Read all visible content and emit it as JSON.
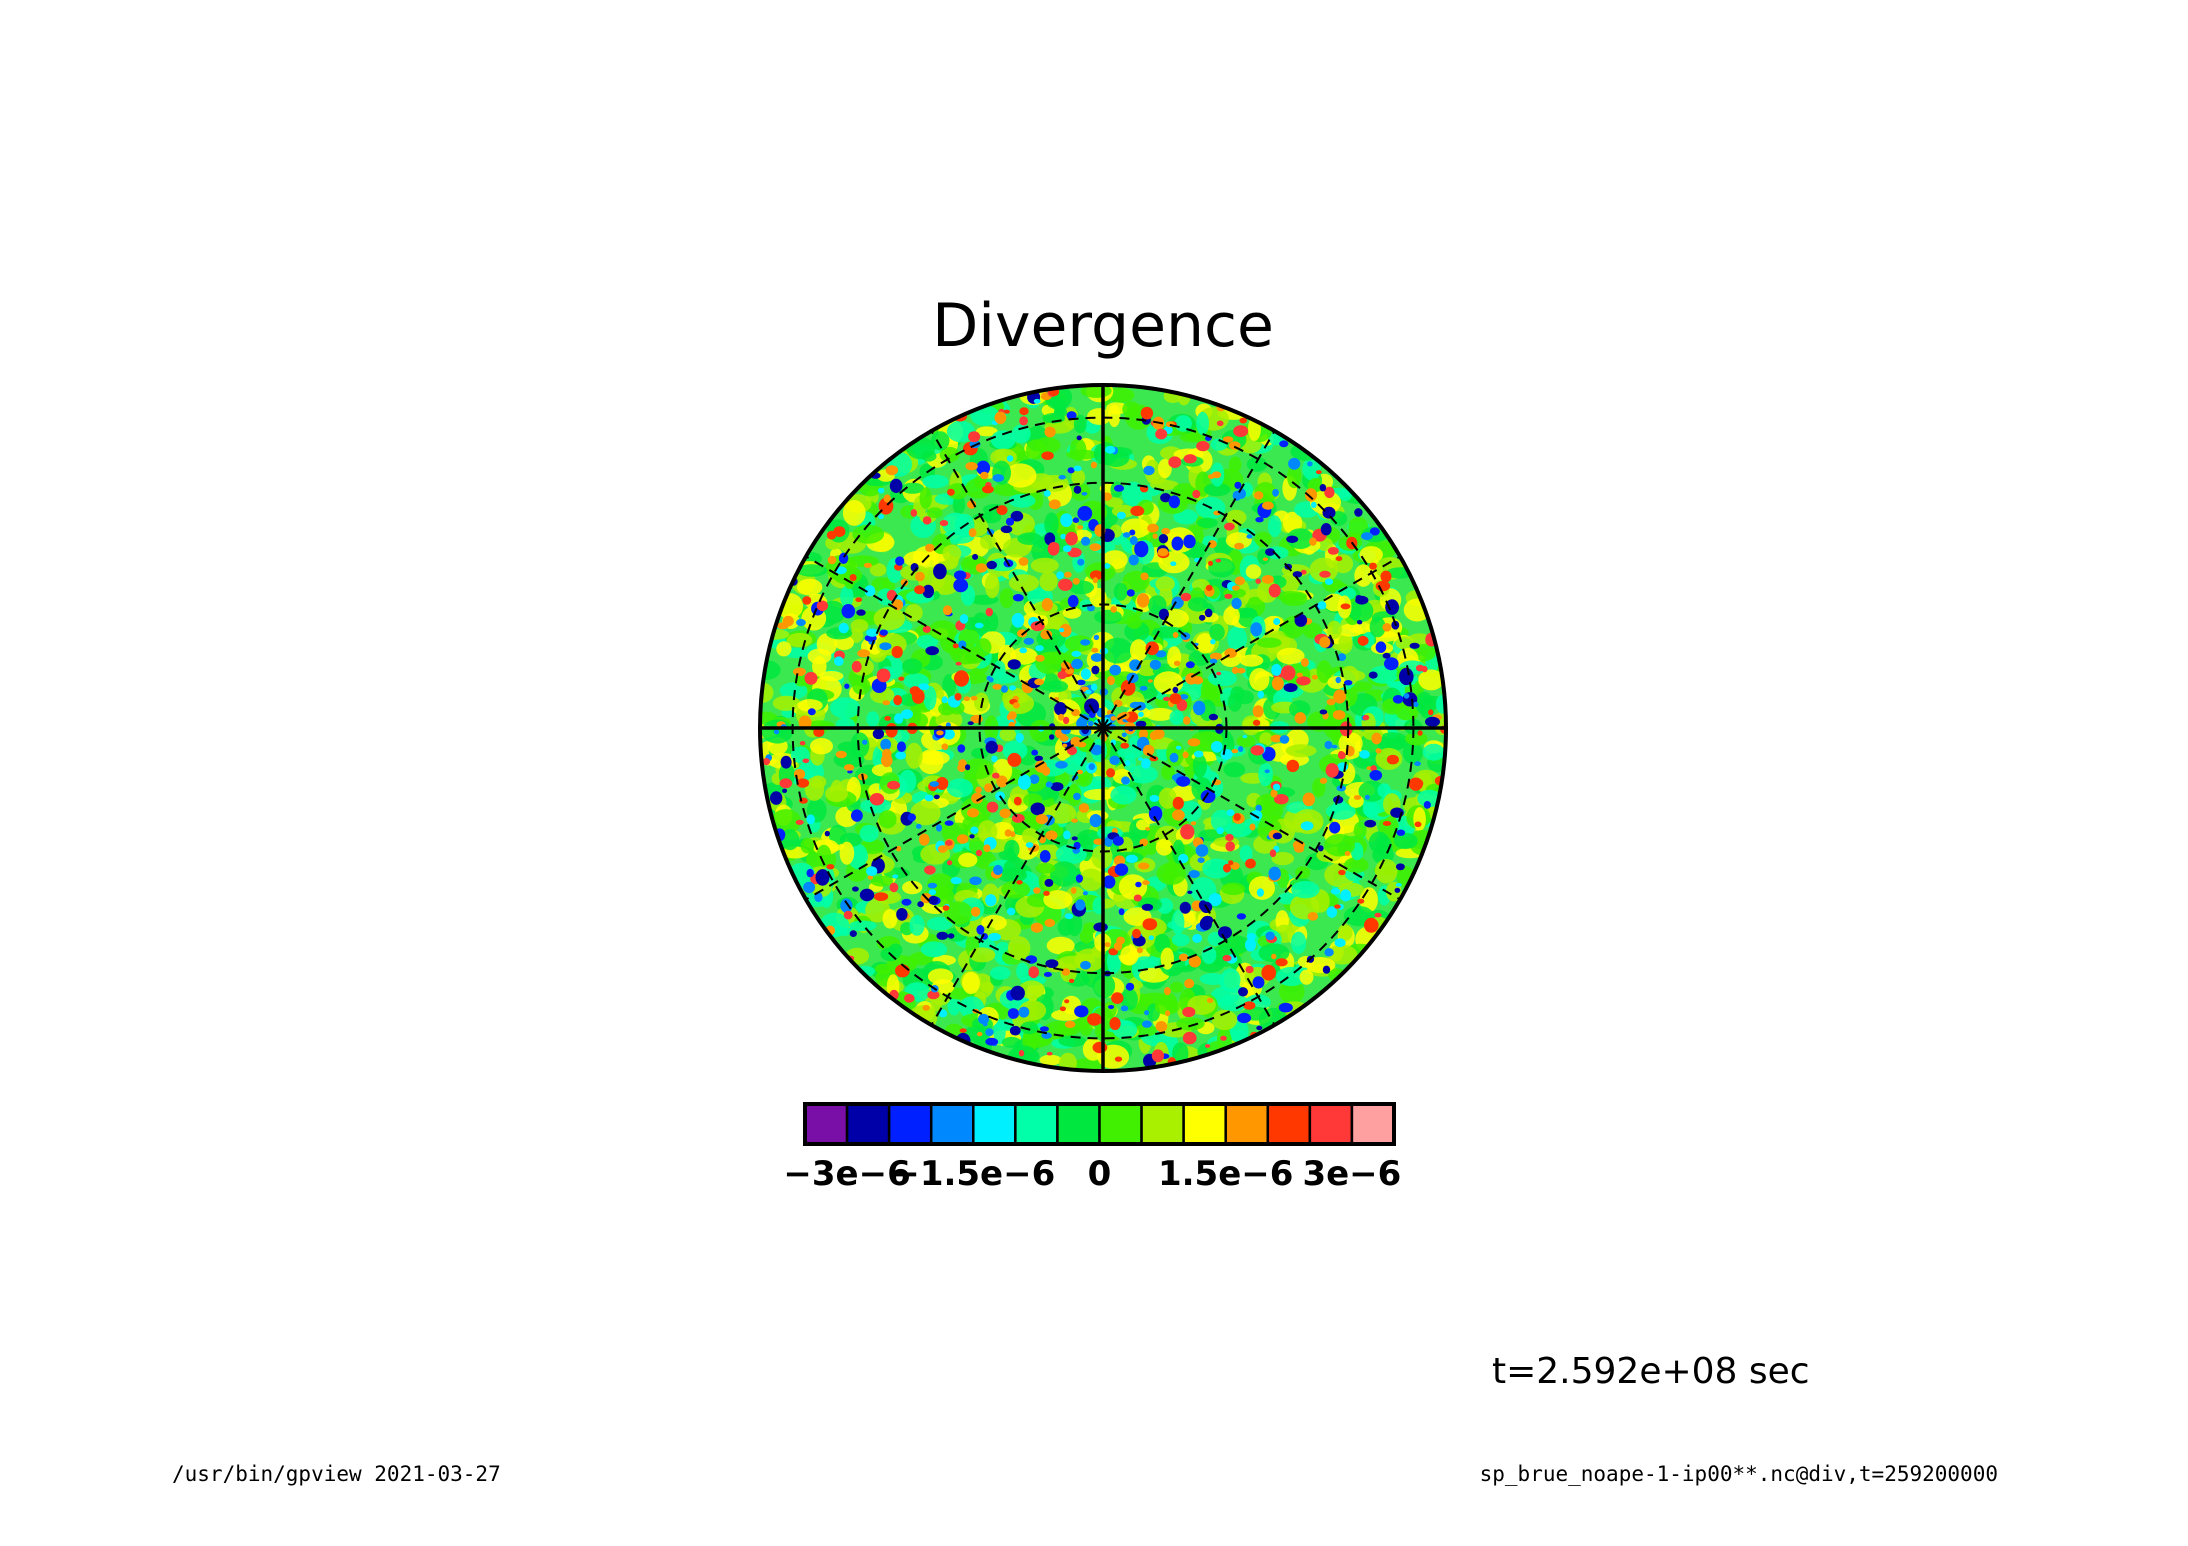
{
  "chart_data": {
    "type": "heatmap",
    "projection": "polar-stereographic",
    "title": "Divergence",
    "field": "div",
    "colorbar": {
      "bins": [
        -3.5e-06,
        -3e-06,
        -2.5e-06,
        -2e-06,
        -1.5e-06,
        -1e-06,
        -5e-07,
        0,
        5e-07,
        1e-06,
        1.5e-06,
        2e-06,
        2.5e-06,
        3e-06,
        3.5e-06
      ],
      "colors": [
        "#7a0fa8",
        "#0000a8",
        "#0020ff",
        "#0088ff",
        "#00f0ff",
        "#00ffa8",
        "#00e840",
        "#40f000",
        "#a8f000",
        "#ffff00",
        "#ff9800",
        "#ff3800",
        "#ff3838",
        "#ffa0a0"
      ],
      "tick_values": [
        -3e-06,
        -1.5e-06,
        0,
        1.5e-06,
        3e-06
      ],
      "tick_labels": [
        "−3e−6",
        "−1.5e−6",
        "0",
        "1.5e−6",
        "3e−6"
      ]
    },
    "background_color": "#3ce850",
    "grid": {
      "meridians_solid_deg": [
        0,
        90,
        180,
        270
      ],
      "meridians_dashed_deg": [
        30,
        60,
        120,
        150,
        210,
        240,
        300,
        330
      ],
      "latitude_circles_dashed": 3
    }
  },
  "annotations": {
    "time_label": "t=2.592e+08 sec",
    "footer_left": "/usr/bin/gpview  2021-03-27",
    "footer_right": "sp_brue_noape-1-ip00**.nc@div,t=259200000"
  }
}
